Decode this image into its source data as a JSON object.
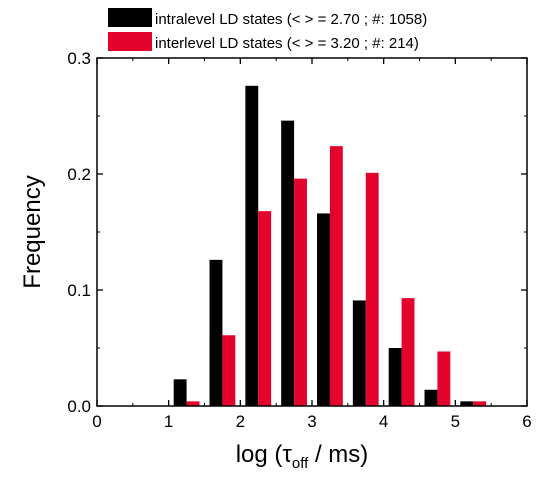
{
  "chart_data": {
    "type": "bar",
    "xlabel": "log (τ",
    "xlabel_sub": "off",
    "xlabel_suffix": " / ms)",
    "ylabel": "Frequency",
    "xlim": [
      0,
      6
    ],
    "ylim": [
      0,
      0.3
    ],
    "xticks": [
      0,
      1,
      2,
      3,
      4,
      5,
      6
    ],
    "yticks": [
      0.0,
      0.1,
      0.2,
      0.3
    ],
    "ytick_labels": [
      "0.0",
      "0.1",
      "0.2",
      "0.3"
    ],
    "bin_centers": [
      1.25,
      1.75,
      2.25,
      2.75,
      3.25,
      3.75,
      4.25,
      4.75,
      5.25
    ],
    "legend_position": "top",
    "series": [
      {
        "name": "intralevel LD states (< > = 2.70 ; #: 1058)",
        "color": "#000000",
        "values": [
          0.023,
          0.126,
          0.276,
          0.246,
          0.166,
          0.091,
          0.05,
          0.014,
          0.004
        ]
      },
      {
        "name": "interlevel LD states (< > = 3.20 ; #: 214)",
        "color": "#e3032d",
        "values": [
          0.004,
          0.061,
          0.168,
          0.196,
          0.224,
          0.201,
          0.093,
          0.047,
          0.004
        ]
      }
    ]
  }
}
